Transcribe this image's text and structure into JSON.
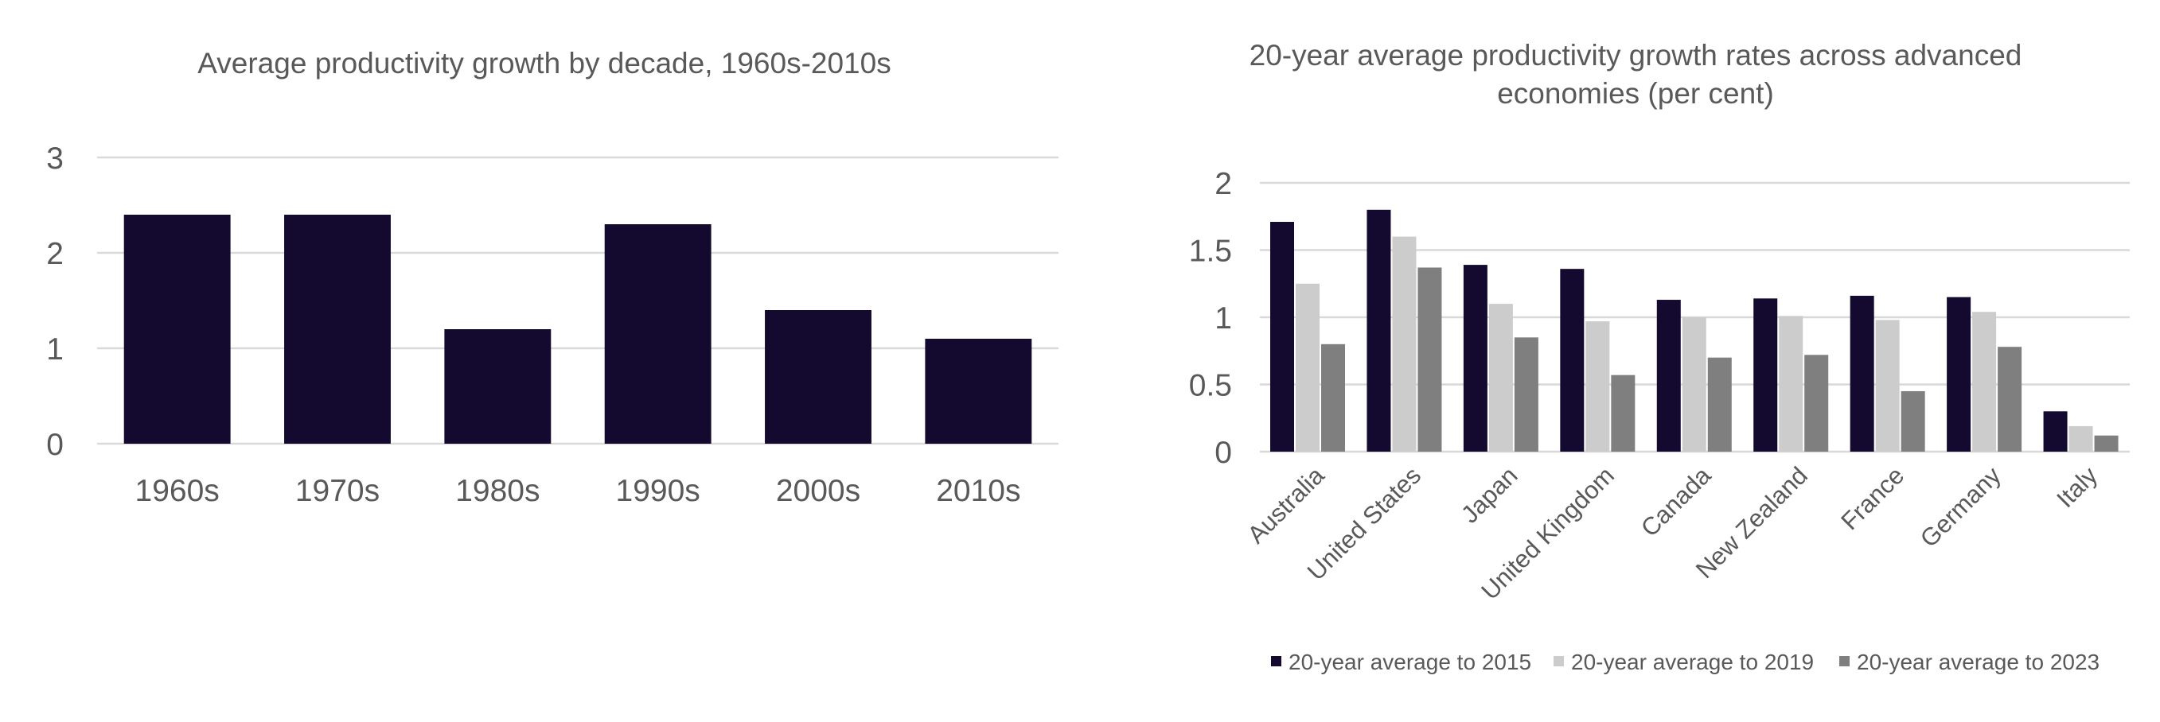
{
  "chart_data": [
    {
      "type": "bar",
      "title": "Average productivity growth by decade, 1960s-2010s",
      "categories": [
        "1960s",
        "1970s",
        "1980s",
        "1990s",
        "2000s",
        "2010s"
      ],
      "values": [
        2.4,
        2.4,
        1.2,
        2.3,
        1.4,
        1.1
      ],
      "ylim": [
        0,
        3
      ],
      "yticks": [
        "0",
        "1",
        "2",
        "3"
      ],
      "grid": true,
      "colors": [
        "#140a30"
      ]
    },
    {
      "type": "bar",
      "title": "20-year average productivity growth rates across advanced economies (per cent)",
      "title_lines": [
        "20-year average productivity growth rates across advanced",
        "economies (per cent)"
      ],
      "categories": [
        "Australia",
        "United States",
        "Japan",
        "United Kingdom",
        "Canada",
        "New Zealand",
        "France",
        "Germany",
        "Italy"
      ],
      "series": [
        {
          "name": "20-year average to 2015",
          "color": "#140a30",
          "values": [
            1.71,
            1.8,
            1.39,
            1.36,
            1.13,
            1.14,
            1.16,
            1.15,
            0.3
          ]
        },
        {
          "name": "20-year average to 2019",
          "color": "#cccccc",
          "values": [
            1.25,
            1.6,
            1.1,
            0.97,
            1.0,
            1.01,
            0.98,
            1.04,
            0.19
          ]
        },
        {
          "name": "20-year average to 2023",
          "color": "#7f7f7f",
          "values": [
            0.8,
            1.37,
            0.85,
            0.57,
            0.7,
            0.72,
            0.45,
            0.78,
            0.12
          ]
        }
      ],
      "ylim": [
        0,
        2
      ],
      "yticks": [
        "0",
        "0.5",
        "1",
        "1.5",
        "2"
      ],
      "grid": true,
      "legend": "bottom"
    }
  ]
}
